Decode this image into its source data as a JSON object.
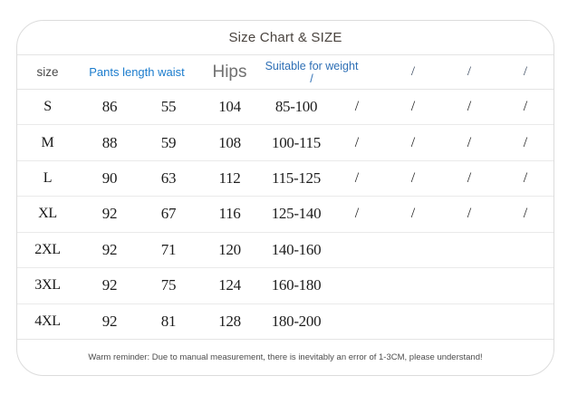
{
  "title": "Size Chart & SIZE",
  "colors": {
    "header_blue": "#1b7ccd",
    "header_blue_dark": "#2e6fb5",
    "card_border": "#dcdcdc",
    "divider": "#e4e4e4",
    "data_text": "#1d1d1d"
  },
  "table": {
    "header": {
      "size": "size",
      "pants_length_waist": "Pants length waist",
      "hips": "Hips",
      "suitable_for_weight": "Suitable for weight /",
      "slashes": [
        "/",
        "/",
        "/"
      ]
    },
    "rows": [
      [
        "S",
        "86",
        "55",
        "104",
        "85-100",
        "/",
        "/",
        "/",
        "/"
      ],
      [
        "M",
        "88",
        "59",
        "108",
        "100-115",
        "/",
        "/",
        "/",
        "/"
      ],
      [
        "L",
        "90",
        "63",
        "112",
        "115-125",
        "/",
        "/",
        "/",
        "/"
      ],
      [
        "XL",
        "92",
        "67",
        "116",
        "125-140",
        "/",
        "/",
        "/",
        "/"
      ],
      [
        "2XL",
        "92",
        "71",
        "120",
        "140-160",
        "",
        "",
        "",
        ""
      ],
      [
        "3XL",
        "92",
        "75",
        "124",
        "160-180",
        "",
        "",
        "",
        ""
      ],
      [
        "4XL",
        "92",
        "81",
        "128",
        "180-200",
        "",
        "",
        "",
        ""
      ]
    ],
    "footer": "Warm reminder: Due to manual measurement, there is inevitably an error of 1-3CM, please understand!"
  }
}
